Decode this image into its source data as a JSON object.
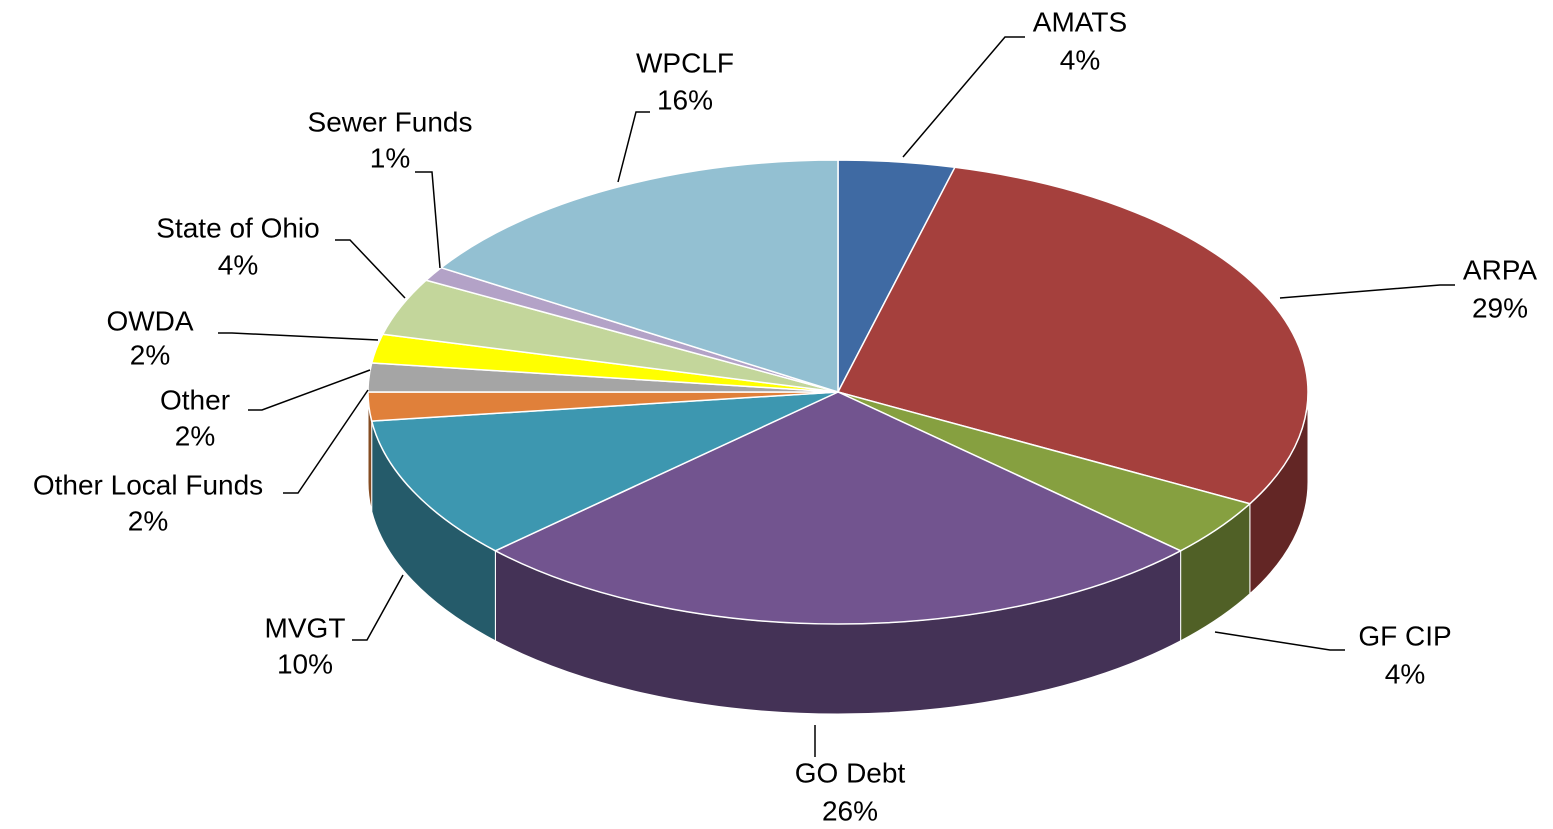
{
  "chart_data": {
    "type": "pie",
    "categories": [
      "AMATS",
      "ARPA",
      "GF CIP",
      "GO Debt",
      "MVGT",
      "Other Local Funds",
      "Other",
      "OWDA",
      "State of Ohio",
      "Sewer Funds",
      "WPCLF"
    ],
    "values": [
      4,
      29,
      4,
      26,
      10,
      2,
      2,
      2,
      4,
      1,
      16
    ],
    "value_labels": [
      "4%",
      "29%",
      "4%",
      "26%",
      "10%",
      "2%",
      "2%",
      "2%",
      "4%",
      "1%",
      "16%"
    ],
    "colors": [
      "#3f6aa3",
      "#a5403d",
      "#86a040",
      "#72548f",
      "#3d97b0",
      "#e0803a",
      "#a5a5a5",
      "#ffff00",
      "#c3d69b",
      "#b3a2c7",
      "#93c0d2"
    ]
  }
}
